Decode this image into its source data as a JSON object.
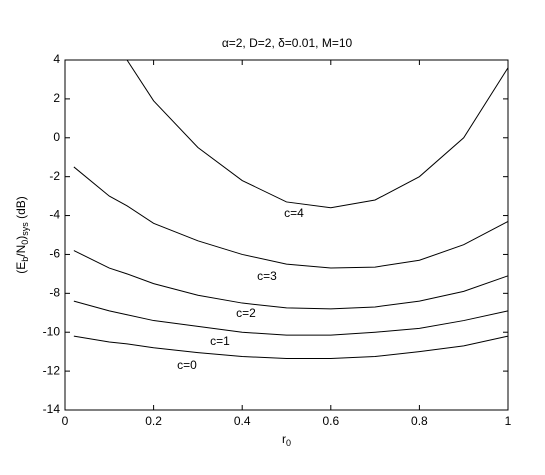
{
  "chart_data": {
    "type": "line",
    "title": "α=2, D=2, δ=0.01, M=10",
    "ylabel": [
      "(E",
      "b",
      "/N",
      "0",
      ")",
      "sys",
      " (dB)"
    ],
    "xlabel": [
      "r",
      "0"
    ],
    "x": [
      0.02,
      0.1,
      0.14,
      0.2,
      0.3,
      0.4,
      0.5,
      0.6,
      0.7,
      0.8,
      0.9,
      1.0
    ],
    "series": [
      {
        "name": "c=0",
        "color": "#000000",
        "values": [
          -10.2,
          -10.5,
          -10.6,
          -10.8,
          -11.05,
          -11.25,
          -11.35,
          -11.35,
          -11.25,
          -11.0,
          -10.7,
          -10.2
        ]
      },
      {
        "name": "c=1",
        "color": "#000000",
        "values": [
          -8.4,
          -8.9,
          -9.1,
          -9.4,
          -9.7,
          -10.0,
          -10.15,
          -10.15,
          -10.0,
          -9.8,
          -9.4,
          -8.9
        ]
      },
      {
        "name": "c=2",
        "color": "#000000",
        "values": [
          -5.8,
          -6.7,
          -7.0,
          -7.5,
          -8.1,
          -8.5,
          -8.75,
          -8.8,
          -8.7,
          -8.4,
          -7.9,
          -7.1
        ]
      },
      {
        "name": "c=3",
        "color": "#000000",
        "values": [
          -1.5,
          -3.0,
          -3.5,
          -4.4,
          -5.3,
          -6.0,
          -6.5,
          -6.7,
          -6.65,
          -6.3,
          -5.5,
          -4.3
        ]
      },
      {
        "name": "c=4",
        "color": "#000000",
        "values": [
          null,
          null,
          4,
          1.9,
          -0.5,
          -2.2,
          -3.3,
          -3.6,
          -3.2,
          -2.0,
          0.0,
          3.6
        ]
      }
    ],
    "xlim": [
      0,
      1
    ],
    "xticks": [
      0,
      0.2,
      0.4,
      0.6,
      0.8,
      1
    ],
    "ylim": [
      -14,
      4
    ],
    "yticks": [
      -14,
      -12,
      -10,
      -8,
      -6,
      -4,
      -2,
      0,
      2,
      4
    ],
    "grid": false
  }
}
